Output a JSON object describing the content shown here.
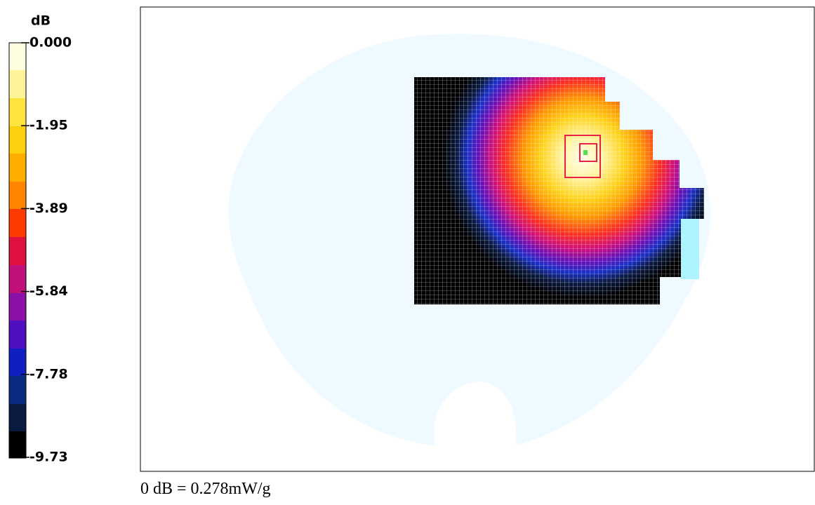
{
  "colorbar": {
    "unit": "dB",
    "labels": [
      "0.000",
      "-1.95",
      "-3.89",
      "-5.84",
      "-7.78",
      "-9.73"
    ]
  },
  "footnote": "0 dB = 0.278mW/g"
}
